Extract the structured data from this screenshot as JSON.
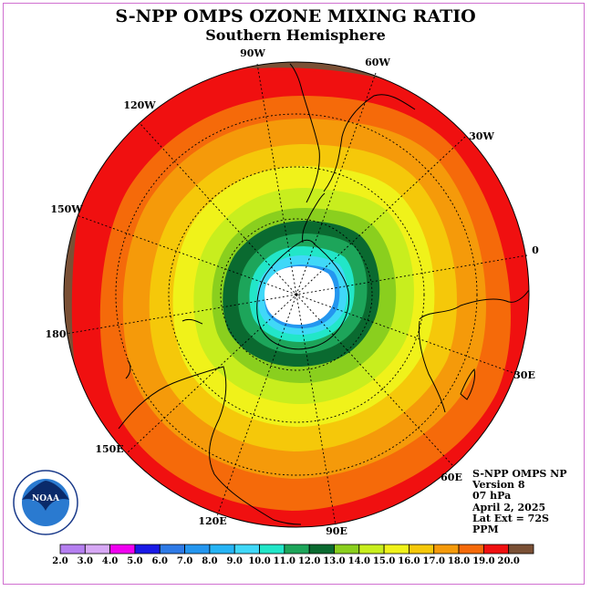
{
  "title": "S-NPP OMPS OZONE MIXING RATIO",
  "subtitle": "Southern Hemisphere",
  "longitude_labels": [
    "90W",
    "60W",
    "30W",
    "0",
    "30E",
    "60E",
    "90E",
    "120E",
    "150E",
    "180",
    "150W",
    "120W"
  ],
  "info": {
    "instrument": "S-NPP OMPS NP",
    "version": "Version 8",
    "level": "07 hPa",
    "date": "April 2, 2025",
    "lat_ext": "Lat Ext = 72S",
    "units": "PPM"
  },
  "colorbar": {
    "ticks": [
      "2.0",
      "3.0",
      "4.0",
      "5.0",
      "6.0",
      "7.0",
      "8.0",
      "9.0",
      "10.0",
      "11.0",
      "12.0",
      "13.0",
      "14.0",
      "15.0",
      "16.0",
      "17.0",
      "18.0",
      "19.0",
      "20.0"
    ],
    "colors": [
      "#b57ff0",
      "#d7a8f5",
      "#f000f0",
      "#1a1ae6",
      "#2e7ae6",
      "#2496ef",
      "#26b4f5",
      "#40d8f8",
      "#22e6c8",
      "#1da55a",
      "#0a6a30",
      "#8acf1e",
      "#c8ee1e",
      "#f0f21a",
      "#f5c80a",
      "#f59a0a",
      "#f56a0a",
      "#f01010",
      "#7a5035"
    ]
  },
  "map": {
    "projection": "south-polar-stereographic",
    "logo": "NOAA",
    "levels_ppm": [
      20,
      19,
      18,
      17,
      16,
      15,
      14,
      13,
      12,
      11,
      10,
      9,
      8
    ]
  }
}
